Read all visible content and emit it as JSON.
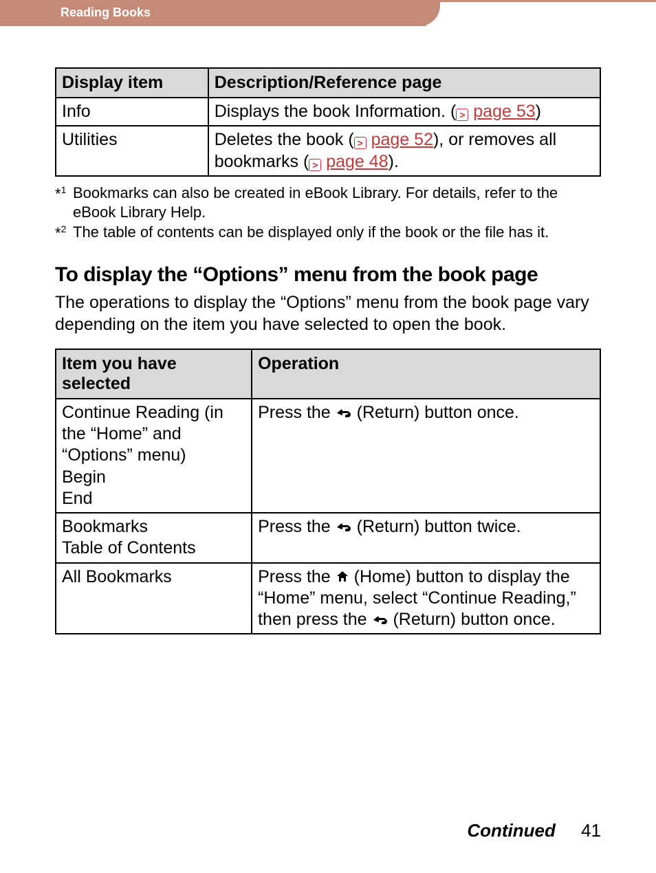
{
  "header": {
    "section_title": "Reading Books"
  },
  "colors": {
    "header_bg": "#c48b78",
    "header_text": "#ffffff",
    "link": "#bf3b3b",
    "table_header_bg": "#d9d9d9",
    "border": "#000000",
    "text": "#000000"
  },
  "table1": {
    "headers": [
      "Display item",
      "Description/Reference page"
    ],
    "rows": [
      {
        "item": "Info",
        "desc_pre": "Displays the book Information. (",
        "link1": "page 53",
        "desc_post": ")"
      },
      {
        "item": "Utilities",
        "desc_pre": "Deletes the book (",
        "link1": "page 52",
        "desc_mid": "), or removes all bookmarks (",
        "link2": "page 48",
        "desc_post": ")."
      }
    ]
  },
  "footnotes": [
    {
      "mark": "*1",
      "text": "Bookmarks can also be created in eBook Library. For details, refer to the eBook Library Help."
    },
    {
      "mark": "*2",
      "text": "The table of contents can be displayed only if the book or the file has it."
    }
  ],
  "section": {
    "heading": "To display the “Options” menu from the book page",
    "body": "The operations to display the “Options” menu from the book page vary depending on the item you have selected to open the book."
  },
  "table2": {
    "headers": [
      "Item you have selected",
      "Operation"
    ],
    "rows": [
      {
        "item": "Continue Reading (in the “Home” and “Options” menu)\nBegin\nEnd",
        "op_pre": "Press the ",
        "icon1": "return",
        "op_mid1": " (Return) button once.",
        "icon2": null,
        "op_mid2": "",
        "icon3": null,
        "op_post": ""
      },
      {
        "item": "Bookmarks\nTable of Contents",
        "op_pre": "Press the ",
        "icon1": "return",
        "op_mid1": " (Return) button twice.",
        "icon2": null,
        "op_mid2": "",
        "icon3": null,
        "op_post": ""
      },
      {
        "item": "All Bookmarks",
        "op_pre": "Press the ",
        "icon1": "home",
        "op_mid1": " (Home) button to display the “Home” menu, select “Continue Reading,” then press the ",
        "icon2": "return",
        "op_mid2": " (Return) button once.",
        "icon3": null,
        "op_post": ""
      }
    ]
  },
  "footer": {
    "continued": "Continued",
    "page_number": "41"
  }
}
